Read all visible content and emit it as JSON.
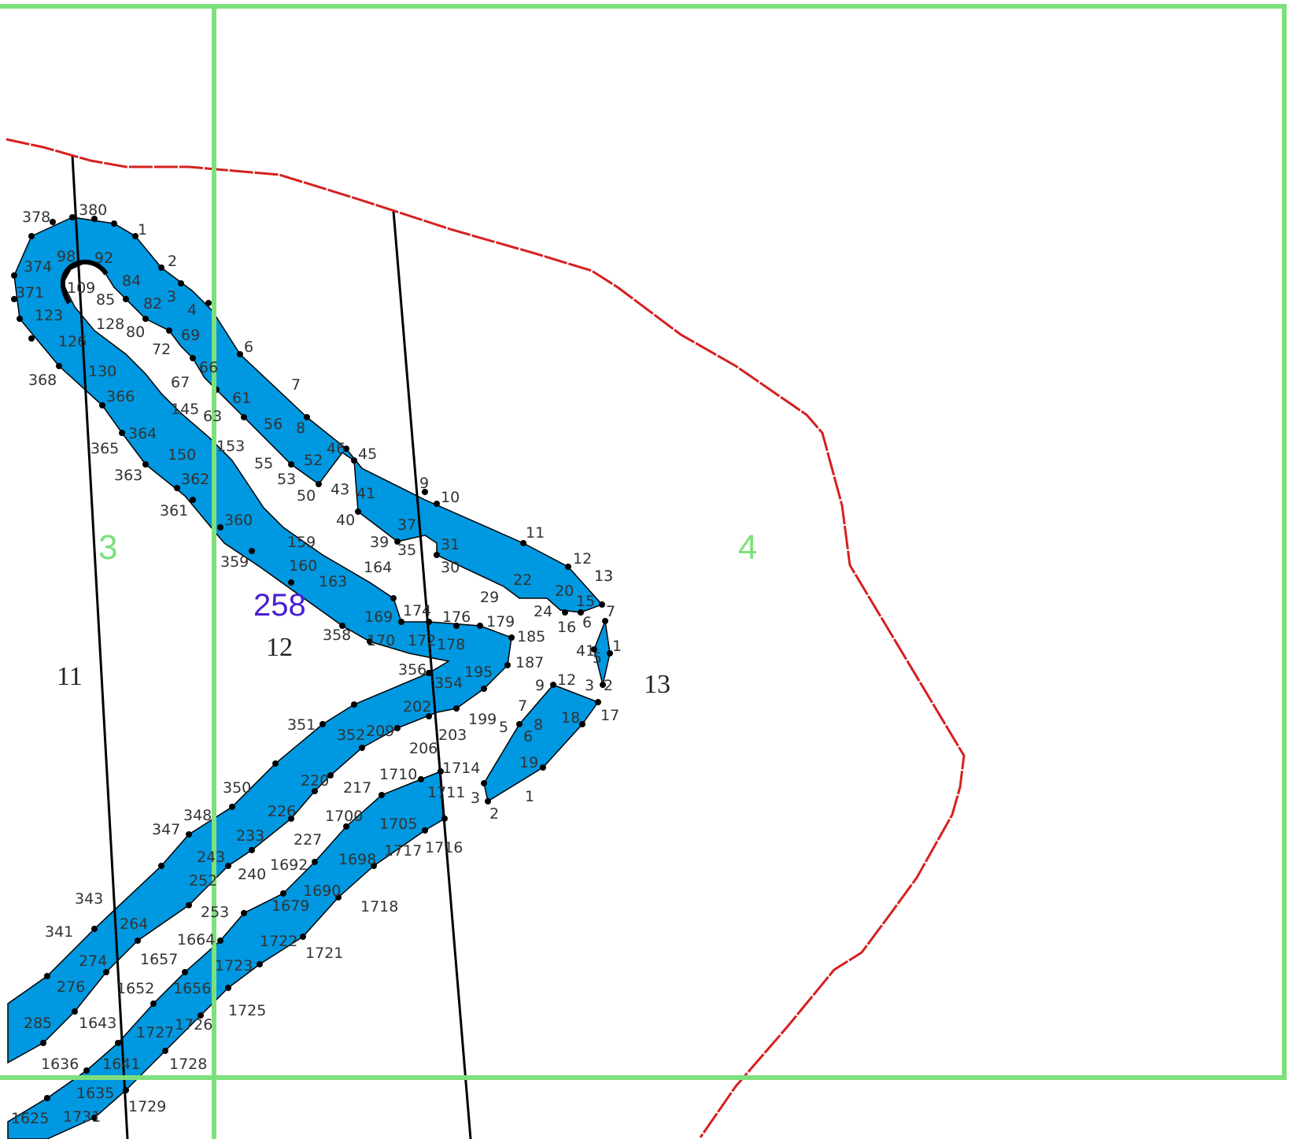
{
  "map": {
    "sheets": [
      "3",
      "4"
    ],
    "cadastral_number": "258",
    "parcels": [
      "11",
      "12",
      "13"
    ],
    "colors": {
      "water": "#0098e0",
      "sheet_grid": "#7de07d",
      "boundary": "#d62020",
      "outline": "#000000",
      "vertex": "#000000",
      "cadastral_label": "#4a1fd1"
    },
    "vertex_labels": [
      "378",
      "380",
      "1",
      "2",
      "374",
      "98",
      "92",
      "84",
      "109",
      "85",
      "371",
      "82",
      "3",
      "4",
      "123",
      "128",
      "80",
      "69",
      "126",
      "72",
      "6",
      "66",
      "368",
      "130",
      "67",
      "7",
      "366",
      "145",
      "61",
      "63",
      "56",
      "8",
      "364",
      "365",
      "153",
      "52",
      "46",
      "45",
      "150",
      "55",
      "362",
      "53",
      "363",
      "9",
      "50",
      "43",
      "41",
      "10",
      "361",
      "360",
      "40",
      "37",
      "159",
      "39",
      "35",
      "31",
      "11",
      "359",
      "160",
      "164",
      "30",
      "12",
      "163",
      "29",
      "22",
      "13",
      "20",
      "15",
      "24",
      "169",
      "174",
      "176",
      "179",
      "16",
      "6",
      "7",
      "358",
      "170",
      "172",
      "178",
      "185",
      "1",
      "41",
      "5",
      "356",
      "187",
      "195",
      "354",
      "9",
      "12",
      "3",
      "2",
      "13",
      "202",
      "7",
      "351",
      "199",
      "18",
      "17",
      "352",
      "209",
      "203",
      "5",
      "8",
      "6",
      "206",
      "19",
      "1714",
      "1710",
      "220",
      "350",
      "1711",
      "217",
      "3",
      "1",
      "2",
      "348",
      "226",
      "1700",
      "1705",
      "347",
      "233",
      "227",
      "1716",
      "1717",
      "243",
      "1692",
      "1698",
      "240",
      "343",
      "252",
      "1690",
      "253",
      "1718",
      "1679",
      "341",
      "264",
      "1664",
      "274",
      "1722",
      "1721",
      "1657",
      "1723",
      "276",
      "1652",
      "1656",
      "285",
      "1643",
      "1725",
      "1727",
      "1726",
      "1636",
      "1641",
      "1728",
      "1635",
      "1729",
      "1625",
      "1731"
    ]
  }
}
